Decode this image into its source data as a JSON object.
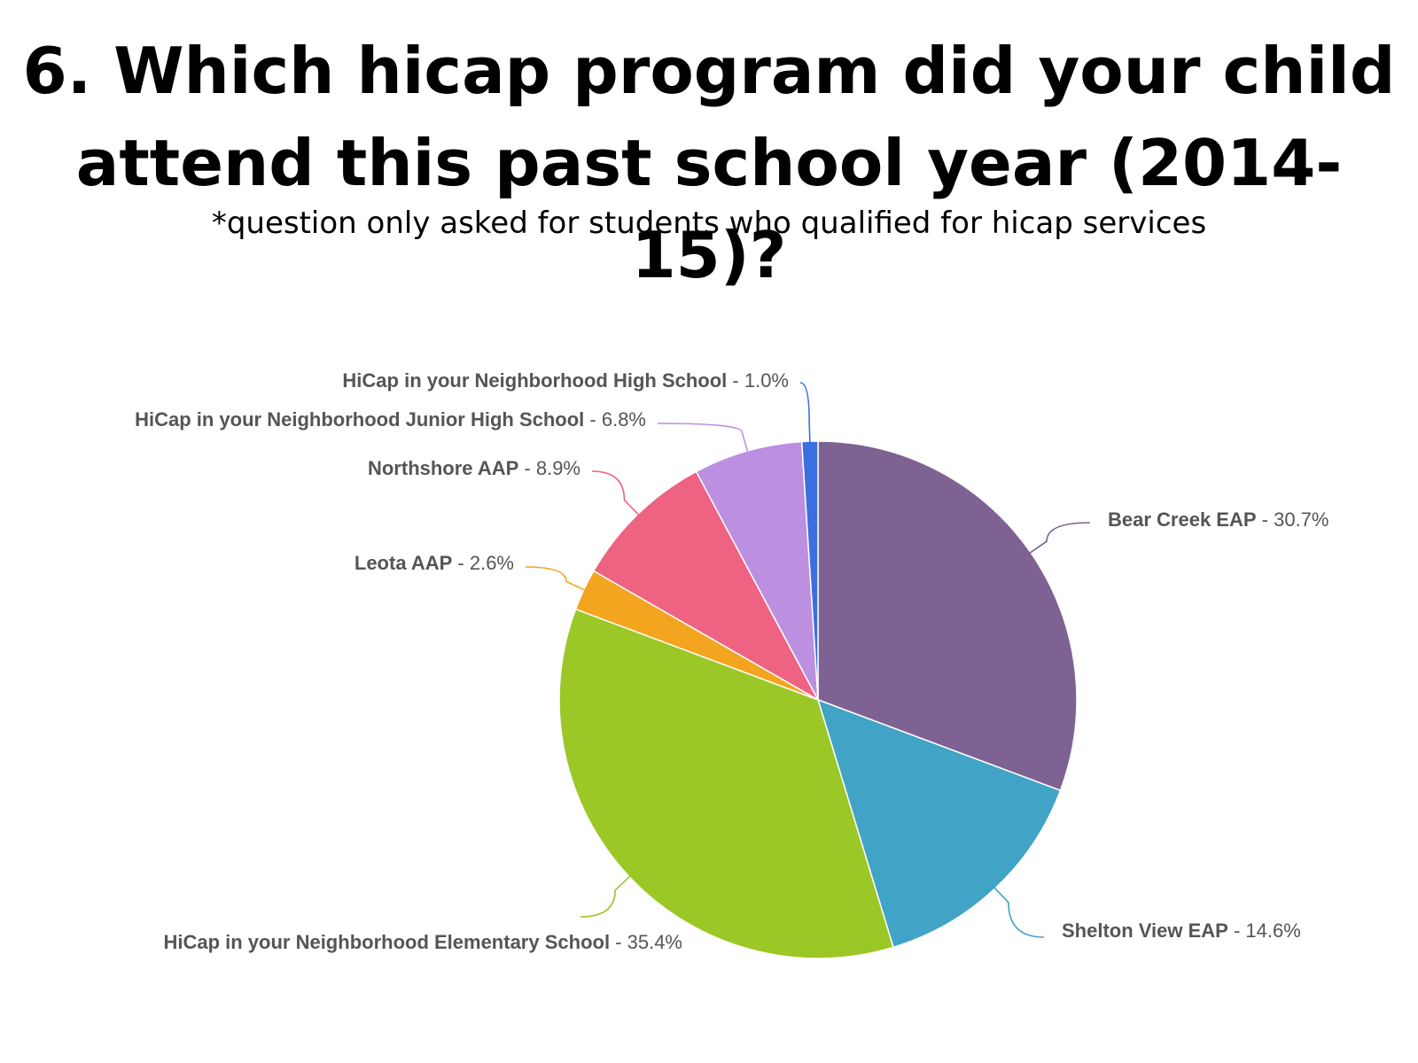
{
  "slide": {
    "title_line1": "6. Which hicap program did your child",
    "title_line2": "attend this past school year (2014-15)?",
    "subtitle": "*question only asked for students who qualified for hicap services"
  },
  "chart_data": {
    "type": "pie",
    "start_angle_deg": 0,
    "direction": "clockwise",
    "slices": [
      {
        "label": "Bear Creek EAP",
        "value": 30.7,
        "value_label": "30.7%",
        "color": "#7d6293"
      },
      {
        "label": "Shelton View EAP",
        "value": 14.6,
        "value_label": "14.6%",
        "color": "#41a3c6"
      },
      {
        "label": "HiCap in your Neighborhood Elementary School",
        "value": 35.4,
        "value_label": "35.4%",
        "color": "#9bc727"
      },
      {
        "label": "Leota AAP",
        "value": 2.6,
        "value_label": "2.6%",
        "color": "#f3a51f"
      },
      {
        "label": "Northshore AAP",
        "value": 8.9,
        "value_label": "8.9%",
        "color": "#ee6382"
      },
      {
        "label": "HiCap in your Neighborhood Junior High School",
        "value": 6.8,
        "value_label": "6.8%",
        "color": "#bc8fe0"
      },
      {
        "label": "HiCap in your Neighborhood High School",
        "value": 1.0,
        "value_label": "1.0%",
        "color": "#3b6fe0"
      }
    ]
  }
}
